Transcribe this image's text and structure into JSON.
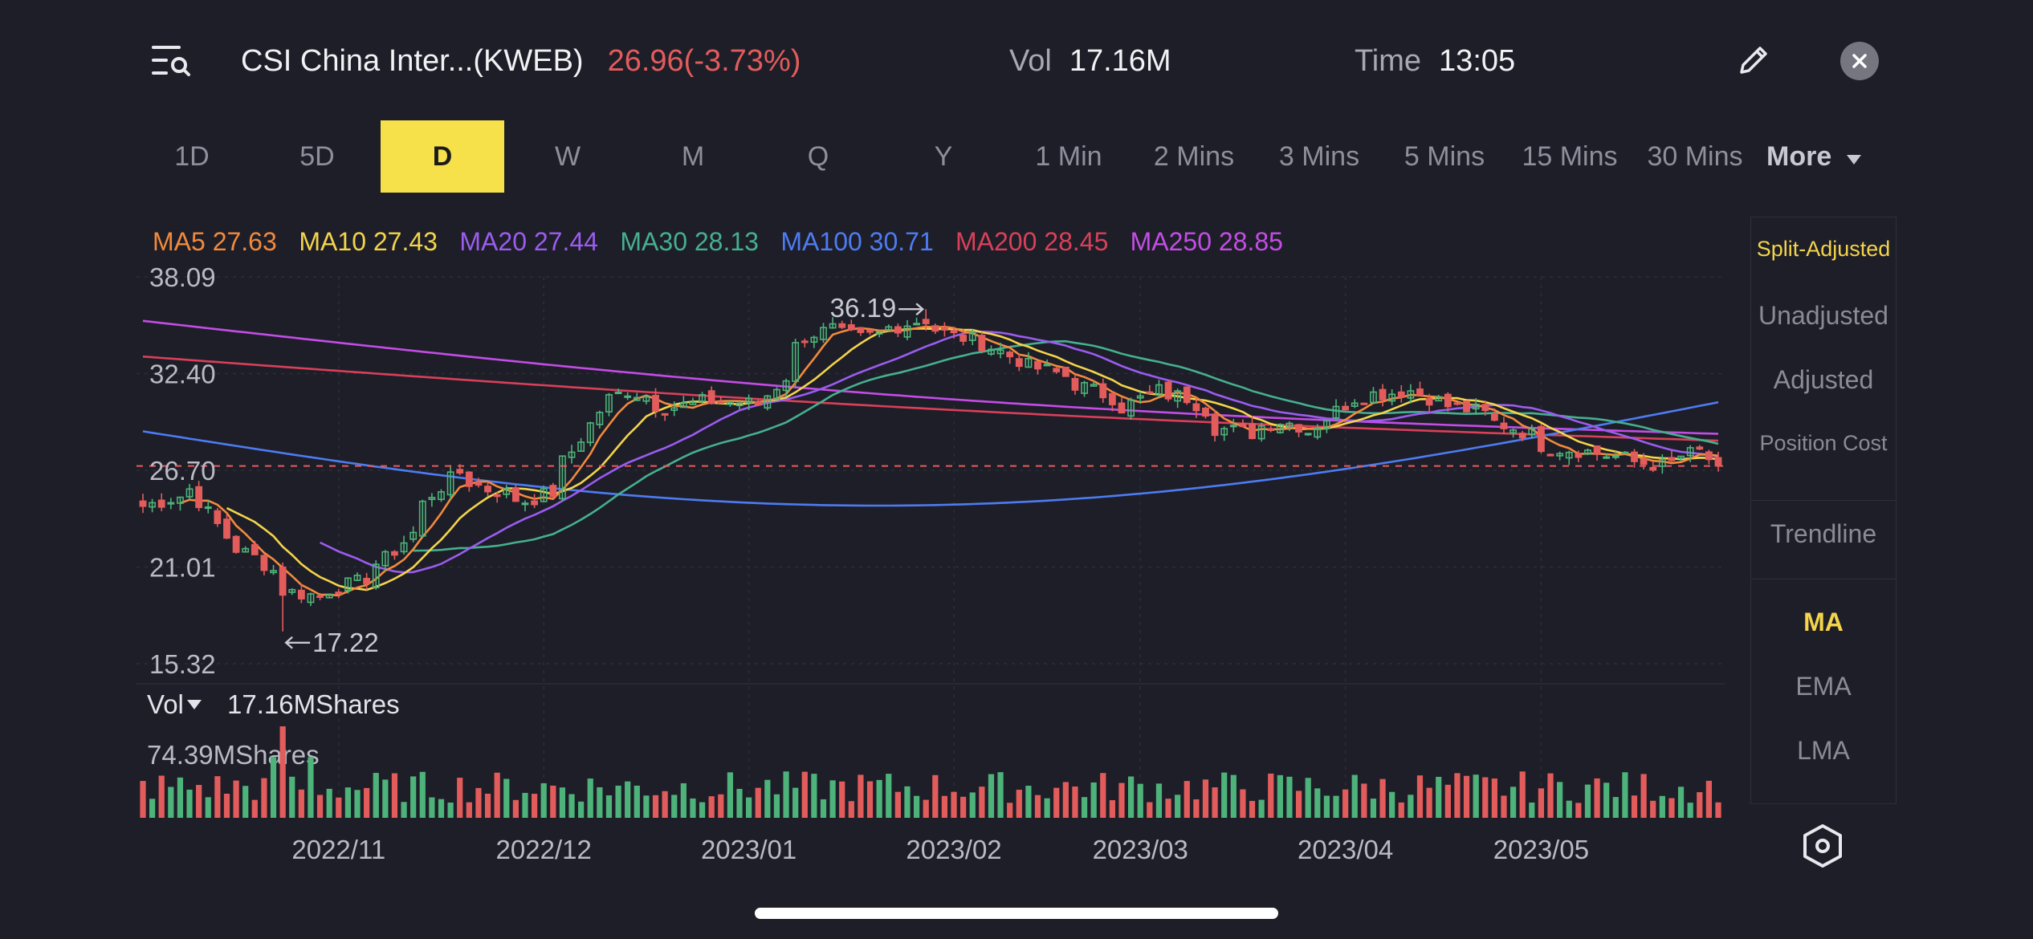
{
  "header": {
    "title": "CSI China Inter...(KWEB)",
    "price_change": "26.96(-3.73%)",
    "vol_label": "Vol",
    "vol_value": "17.16M",
    "time_label": "Time",
    "time_value": "13:05",
    "icons": {
      "search": "list-search-icon",
      "edit": "pencil-icon",
      "close": "close-icon"
    }
  },
  "tabs": [
    "1D",
    "5D",
    "D",
    "W",
    "M",
    "Q",
    "Y",
    "1 Min",
    "2 Mins",
    "3 Mins",
    "5 Mins",
    "15 Mins",
    "30 Mins"
  ],
  "active_tab": "D",
  "more_label": "More",
  "sidebar": {
    "items": [
      "Split-Adjusted",
      "Unadjusted",
      "Adjusted",
      "Position Cost",
      "Trendline",
      "MA",
      "EMA",
      "LMA"
    ],
    "selected": [
      "Split-Adjusted",
      "MA"
    ],
    "settings_icon": "hexagon-settings-icon"
  },
  "colors": {
    "background": "#1e1e28",
    "up": "#4db37a",
    "down": "#e35c5c",
    "accent": "#f7e14a",
    "ma5": "#f28a3c",
    "ma10": "#f3d44b",
    "ma20": "#9b5cf0",
    "ma30": "#45b08f",
    "ma100": "#4d7cf2",
    "ma200": "#d9405a",
    "ma250": "#c44de6"
  },
  "chart_data": {
    "type": "candlestick",
    "period": "D",
    "price_axis": {
      "ticks": [
        "38.09",
        "32.40",
        "26.70",
        "21.01",
        "15.32"
      ],
      "range": [
        15.32,
        38.09
      ]
    },
    "current_price": 26.96,
    "max_marker": {
      "label": "36.19",
      "value": 36.19,
      "date": "2023/01/27"
    },
    "min_marker": {
      "label": "17.22",
      "value": 17.22,
      "date": "2022/10/24"
    },
    "x_ticks": [
      "2022/11",
      "2022/12",
      "2023/01",
      "2023/02",
      "2023/03",
      "2023/04",
      "2023/05"
    ],
    "ma_legend": [
      {
        "name": "MA5",
        "value": "27.63"
      },
      {
        "name": "MA10",
        "value": "27.43"
      },
      {
        "name": "MA20",
        "value": "27.44"
      },
      {
        "name": "MA30",
        "value": "28.13"
      },
      {
        "name": "MA100",
        "value": "30.71"
      },
      {
        "name": "MA200",
        "value": "28.45"
      },
      {
        "name": "MA250",
        "value": "28.85"
      }
    ],
    "price_anchors": [
      {
        "date": "2022/10/03",
        "close": 24.6
      },
      {
        "date": "2022/10/10",
        "close": 25.6
      },
      {
        "date": "2022/10/14",
        "close": 22.8
      },
      {
        "date": "2022/10/19",
        "close": 21.6
      },
      {
        "date": "2022/10/24",
        "close": 19.6
      },
      {
        "date": "2022/10/28",
        "close": 19.3
      },
      {
        "date": "2022/11/03",
        "close": 20.1
      },
      {
        "date": "2022/11/08",
        "close": 21.5
      },
      {
        "date": "2022/11/11",
        "close": 23.0
      },
      {
        "date": "2022/11/15",
        "close": 25.3
      },
      {
        "date": "2022/11/18",
        "close": 26.6
      },
      {
        "date": "2022/11/23",
        "close": 25.6
      },
      {
        "date": "2022/11/29",
        "close": 24.9
      },
      {
        "date": "2022/12/02",
        "close": 25.4
      },
      {
        "date": "2022/12/06",
        "close": 27.8
      },
      {
        "date": "2022/12/09",
        "close": 30.2
      },
      {
        "date": "2022/12/14",
        "close": 31.4
      },
      {
        "date": "2022/12/20",
        "close": 30.4
      },
      {
        "date": "2022/12/27",
        "close": 30.8
      },
      {
        "date": "2023/01/03",
        "close": 30.6
      },
      {
        "date": "2023/01/06",
        "close": 32.2
      },
      {
        "date": "2023/01/10",
        "close": 34.6
      },
      {
        "date": "2023/01/13",
        "close": 35.0
      },
      {
        "date": "2023/01/18",
        "close": 34.5
      },
      {
        "date": "2023/01/23",
        "close": 35.1
      },
      {
        "date": "2023/01/27",
        "close": 35.6
      },
      {
        "date": "2023/02/01",
        "close": 34.6
      },
      {
        "date": "2023/02/06",
        "close": 34.2
      },
      {
        "date": "2023/02/10",
        "close": 33.2
      },
      {
        "date": "2023/02/15",
        "close": 32.6
      },
      {
        "date": "2023/02/21",
        "close": 31.6
      },
      {
        "date": "2023/02/27",
        "close": 30.4
      },
      {
        "date": "2023/03/03",
        "close": 31.4
      },
      {
        "date": "2023/03/08",
        "close": 31.0
      },
      {
        "date": "2023/03/13",
        "close": 29.2
      },
      {
        "date": "2023/03/17",
        "close": 28.9
      },
      {
        "date": "2023/03/22",
        "close": 29.6
      },
      {
        "date": "2023/03/27",
        "close": 29.0
      },
      {
        "date": "2023/03/31",
        "close": 30.6
      },
      {
        "date": "2023/04/05",
        "close": 31.2
      },
      {
        "date": "2023/04/11",
        "close": 31.4
      },
      {
        "date": "2023/04/14",
        "close": 30.8
      },
      {
        "date": "2023/04/20",
        "close": 30.2
      },
      {
        "date": "2023/04/26",
        "close": 29.2
      },
      {
        "date": "2023/05/02",
        "close": 28.0
      },
      {
        "date": "2023/05/08",
        "close": 27.8
      },
      {
        "date": "2023/05/12",
        "close": 27.4
      },
      {
        "date": "2023/05/18",
        "close": 27.0
      },
      {
        "date": "2023/05/24",
        "close": 27.8
      },
      {
        "date": "2023/05/26",
        "close": 26.96
      }
    ],
    "volume": {
      "label": "Vol",
      "current": "17.16MShares",
      "axis_max": "74.39MShares",
      "max_value_m": 74.39,
      "peak": {
        "date": "2022/10/24",
        "value_m": 74.39
      },
      "typical_range_m": [
        12,
        38
      ]
    }
  }
}
